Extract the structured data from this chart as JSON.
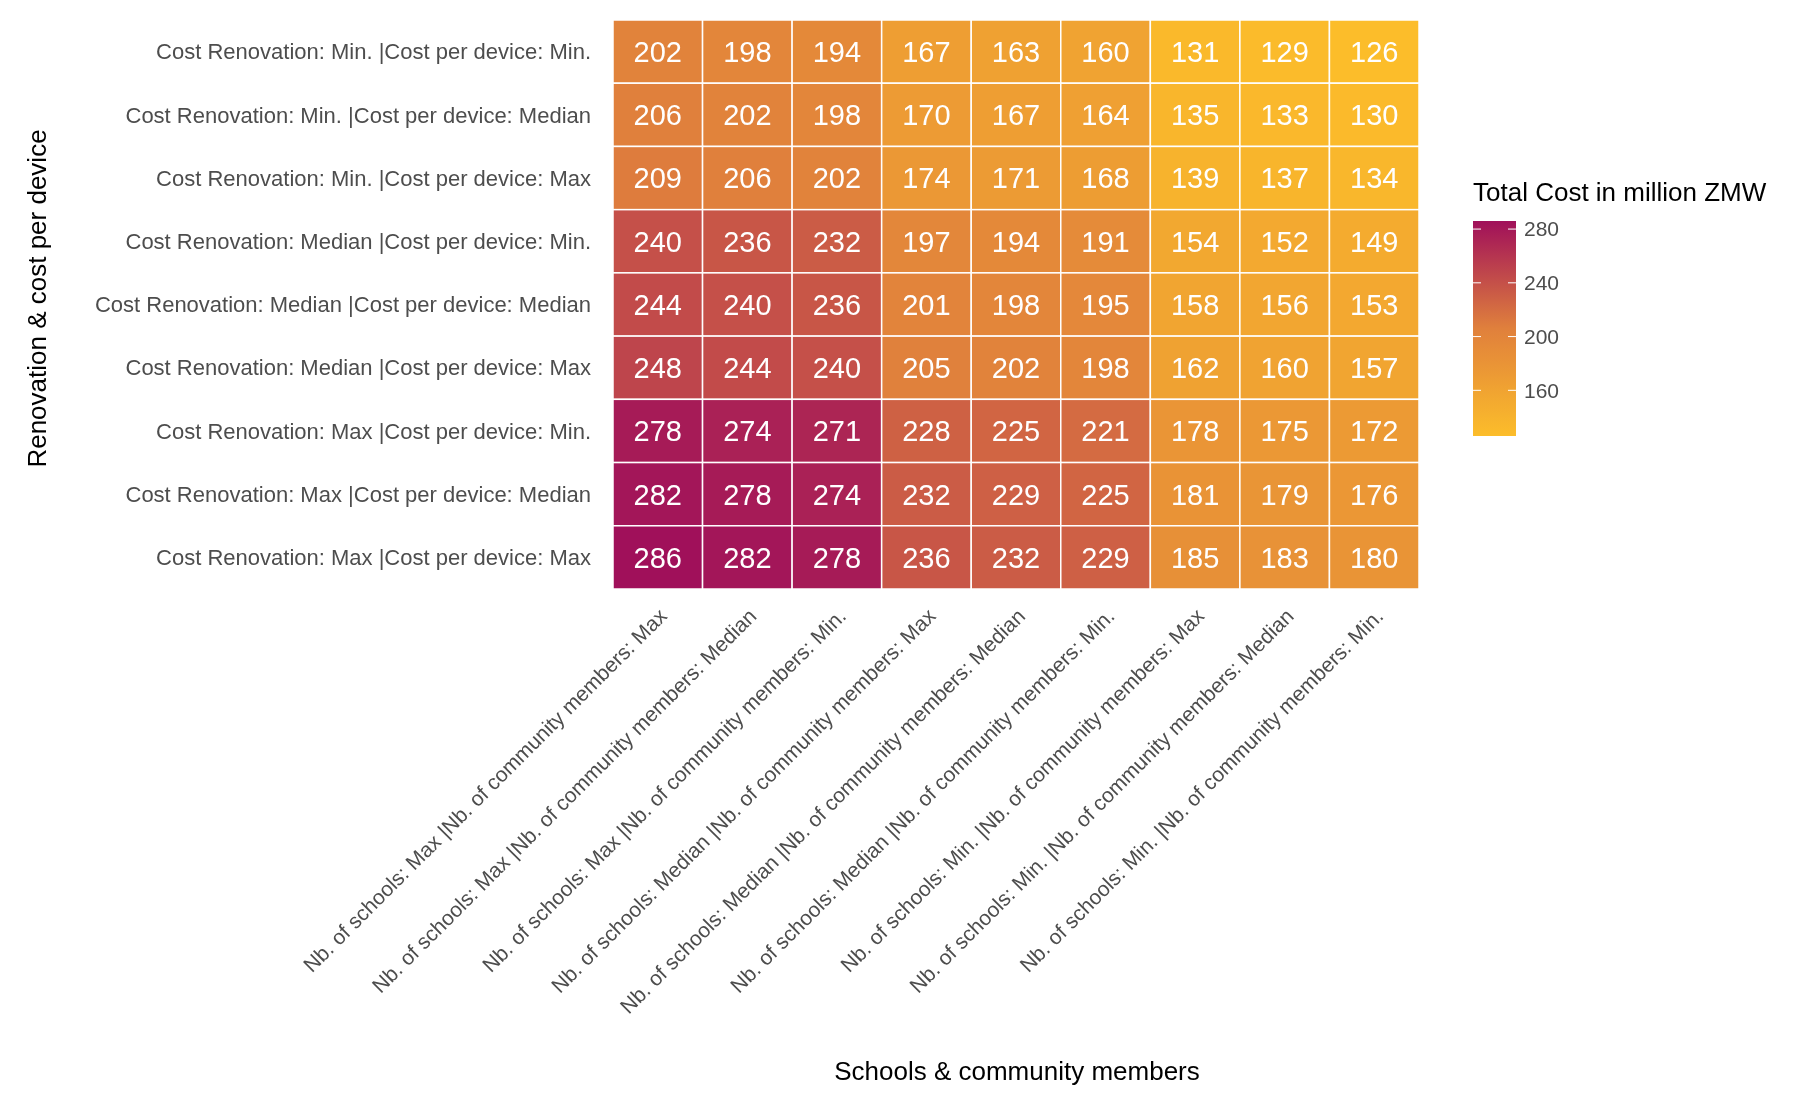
{
  "chart_data": {
    "type": "heatmap",
    "xlabel": "Schools & community members",
    "ylabel": "Renovation & cost per device",
    "clabel": "Total Cost in million ZMW",
    "categories": [
      "Nb. of schools: Max |Nb. of community members: Max",
      "Nb. of schools: Max |Nb. of community members: Median",
      "Nb. of schools: Max |Nb. of community members: Min.",
      "Nb. of schools: Median |Nb. of community members: Max",
      "Nb. of schools: Median |Nb. of community members: Median",
      "Nb. of schools: Median |Nb. of community members: Min.",
      "Nb. of schools: Min. |Nb. of community members: Max",
      "Nb. of schools: Min. |Nb. of community members: Median",
      "Nb. of schools: Min. |Nb. of community members: Min."
    ],
    "y_categories": [
      "Cost Renovation: Min. |Cost per device: Min.",
      "Cost Renovation: Min. |Cost per device: Median",
      "Cost Renovation: Min. |Cost per device: Max",
      "Cost Renovation: Median |Cost per device: Min.",
      "Cost Renovation: Median |Cost per device: Median",
      "Cost Renovation: Median |Cost per device: Max",
      "Cost Renovation: Max |Cost per device: Min.",
      "Cost Renovation: Max |Cost per device: Median",
      "Cost Renovation: Max |Cost per device: Max"
    ],
    "cells": [
      [
        202,
        198,
        194,
        167,
        163,
        160,
        131,
        129,
        126
      ],
      [
        206,
        202,
        198,
        170,
        167,
        164,
        135,
        133,
        130
      ],
      [
        209,
        206,
        202,
        174,
        171,
        168,
        139,
        137,
        134
      ],
      [
        240,
        236,
        232,
        197,
        194,
        191,
        154,
        152,
        149
      ],
      [
        244,
        240,
        236,
        201,
        198,
        195,
        158,
        156,
        153
      ],
      [
        248,
        244,
        240,
        205,
        202,
        198,
        162,
        160,
        157
      ],
      [
        278,
        274,
        271,
        228,
        225,
        221,
        178,
        175,
        172
      ],
      [
        282,
        278,
        274,
        232,
        229,
        225,
        181,
        179,
        176
      ],
      [
        286,
        282,
        278,
        236,
        232,
        229,
        185,
        183,
        180
      ]
    ],
    "data_labels": true,
    "clim": [
      126,
      286
    ],
    "cticks": [
      160,
      200,
      240,
      280
    ]
  }
}
